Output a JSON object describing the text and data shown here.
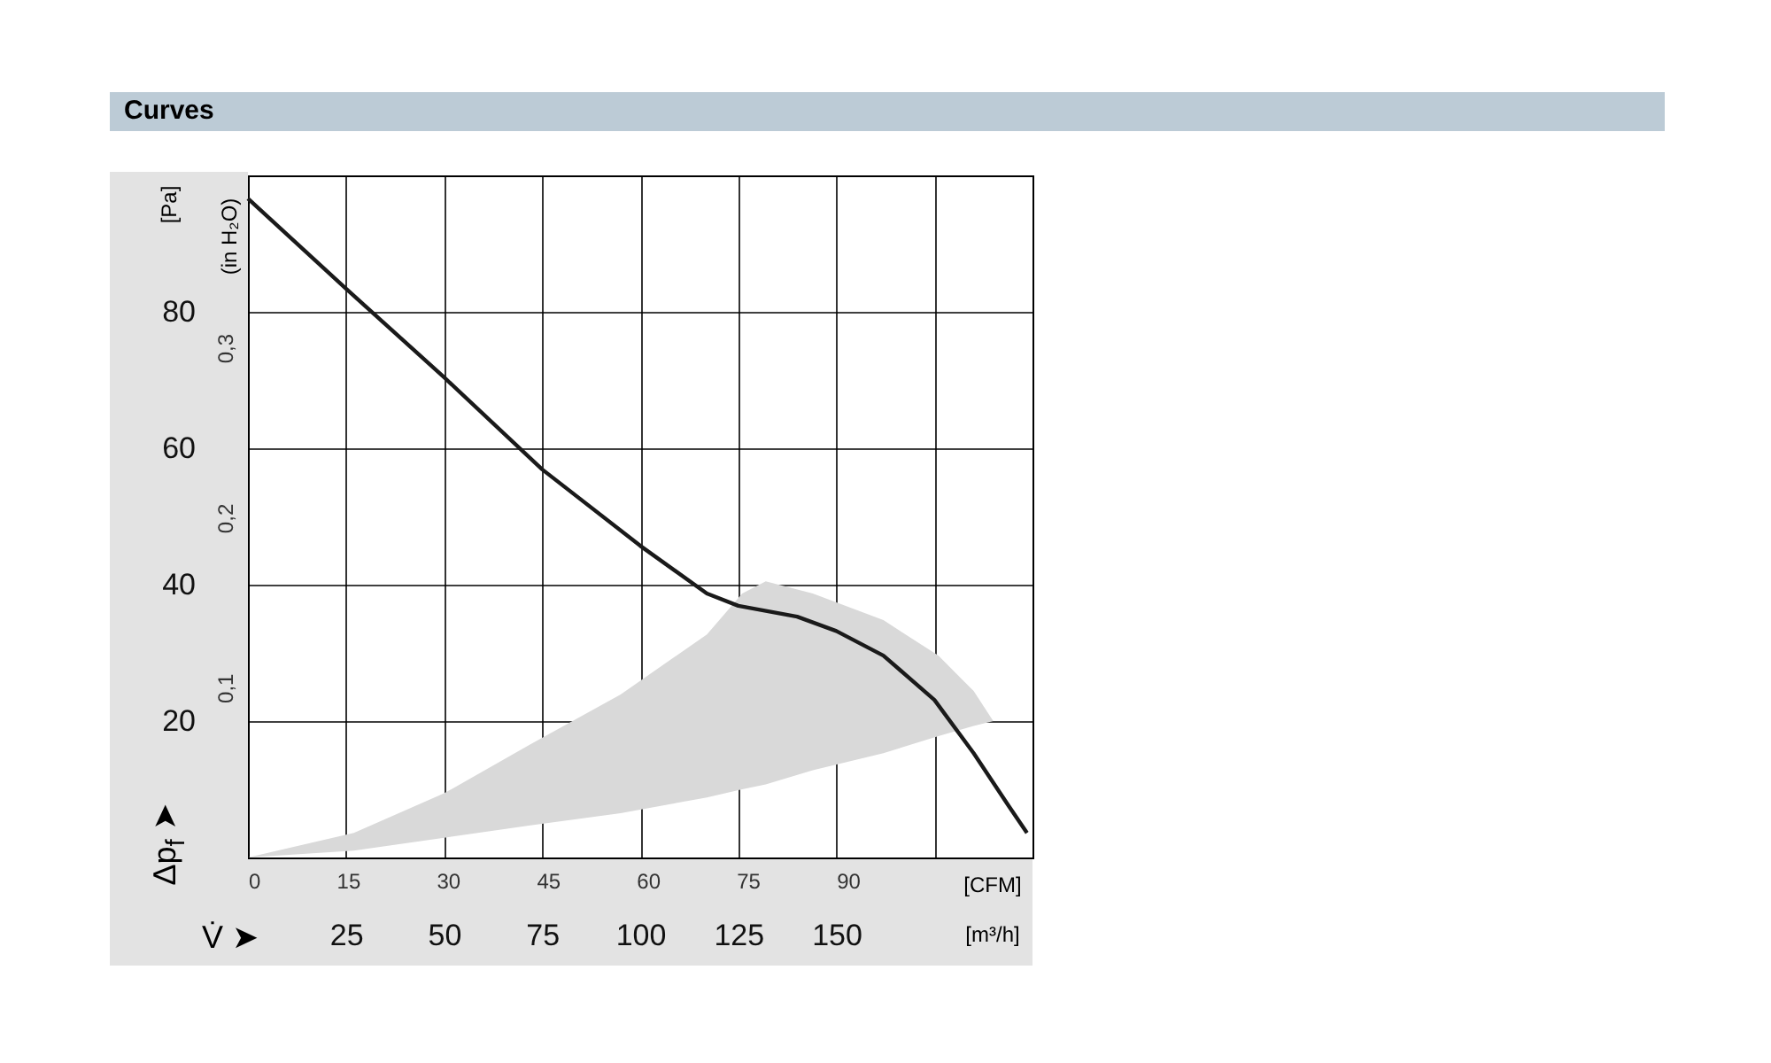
{
  "chart_data": {
    "type": "line",
    "title": "Curves",
    "xlabel": "[m³/h]",
    "ylabel": "[Pa]",
    "x2label": "[CFM]",
    "y2label": "(in H₂O)",
    "annotations": [
      "Δp$_{f}$ ➤",
      "V̇ ➤"
    ],
    "xlim": [
      0,
      200
    ],
    "xticks": [
      {
        "value": 0,
        "label": null
      },
      25,
      50,
      75,
      100,
      125,
      150,
      {
        "value": 175,
        "label": null
      },
      {
        "value": 200,
        "label": null
      }
    ],
    "x2lim": [
      0,
      117.7
    ],
    "x2ticks": [
      0,
      15,
      30,
      45,
      60,
      75,
      90
    ],
    "ylim": [
      0,
      100
    ],
    "yticks": [
      {
        "value": 0,
        "label": null
      },
      20,
      40,
      60,
      80,
      {
        "value": 100,
        "label": null
      }
    ],
    "y2lim": [
      0,
      0.4015
    ],
    "y2ticks": [
      {
        "value": 0.1,
        "label": "0,1"
      },
      {
        "value": 0.2,
        "label": "0,2"
      },
      {
        "value": 0.3,
        "label": "0,3"
      }
    ],
    "grid": true,
    "series": [
      {
        "color": "#d9d9d9",
        "x": [
          0,
          27,
          50,
          72,
          95,
          117,
          126,
          132,
          144,
          162,
          176,
          185,
          190
        ],
        "values": [
          null,
          null,
          null,
          null,
          null,
          null,
          null,
          null,
          null,
          null,
          null,
          null,
          null
        ],
        "upper": [
          0,
          3.6,
          9.4,
          16.6,
          23.9,
          32.7,
          38.7,
          40.5,
          38.7,
          34.8,
          29.6,
          24.4,
          20
        ],
        "lower": [
          0,
          1,
          2.9,
          4.7,
          6.5,
          8.8,
          10,
          10.7,
          12.8,
          15.3,
          17.8,
          19.3,
          20
        ]
      },
      {
        "color": "#1a1a1a",
        "x": [
          0,
          25,
          50,
          75,
          100,
          117,
          125,
          140,
          150,
          162,
          175,
          185,
          194,
          198.6
        ],
        "values": [
          96.6,
          83.4,
          70.4,
          56.9,
          45.7,
          38.7,
          36.9,
          35.3,
          33.2,
          29.6,
          23.1,
          15.3,
          7.5,
          3.6
        ]
      }
    ]
  }
}
